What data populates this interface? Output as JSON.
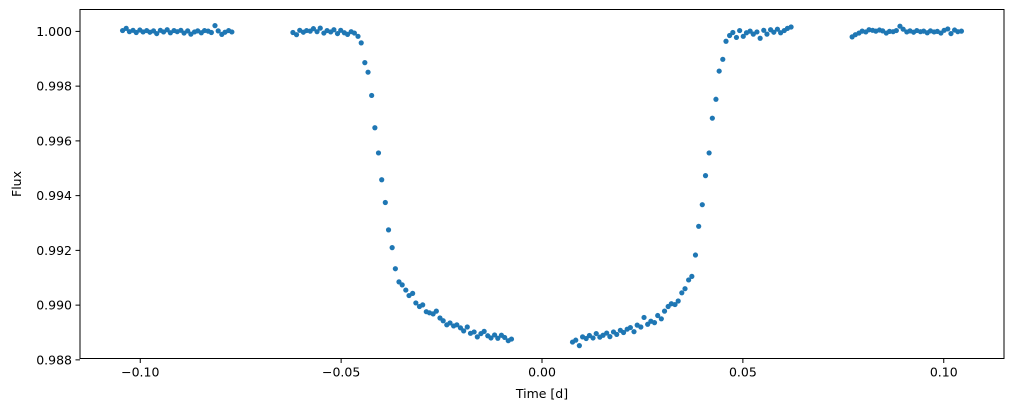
{
  "chart_data": {
    "type": "scatter",
    "title": "",
    "xlabel": "Time [d]",
    "ylabel": "Flux",
    "xlim": [
      -0.115,
      0.115
    ],
    "ylim": [
      0.98805,
      1.0008
    ],
    "grid": false,
    "xticks": [
      -0.1,
      -0.05,
      0.0,
      0.05,
      0.1
    ],
    "xtick_labels": [
      "−0.10",
      "−0.05",
      "0.00",
      "0.05",
      "0.10"
    ],
    "yticks": [
      0.988,
      0.99,
      0.992,
      0.994,
      0.996,
      0.998,
      1.0
    ],
    "ytick_labels": [
      "0.988",
      "0.990",
      "0.992",
      "0.994",
      "0.996",
      "0.998",
      "1.000"
    ],
    "marker_color": "#1f77b4",
    "axes_color": "#000000",
    "points": [
      [
        -0.1044,
        1.00003
      ],
      [
        -0.1035,
        1.00011
      ],
      [
        -0.1027,
        0.99999
      ],
      [
        -0.1018,
        1.00004
      ],
      [
        -0.101,
        0.99996
      ],
      [
        -0.1001,
        1.00005
      ],
      [
        -0.0993,
        0.99998
      ],
      [
        -0.0984,
        1.00003
      ],
      [
        -0.0976,
        0.99997
      ],
      [
        -0.0967,
        1.00002
      ],
      [
        -0.0959,
        0.99992
      ],
      [
        -0.095,
        1.00004
      ],
      [
        -0.0942,
        0.99998
      ],
      [
        -0.0933,
        1.00006
      ],
      [
        -0.0925,
        0.99995
      ],
      [
        -0.0916,
        1.00003
      ],
      [
        -0.0908,
        0.99999
      ],
      [
        -0.0899,
        1.00004
      ],
      [
        -0.0891,
        0.99994
      ],
      [
        -0.0882,
        1.00002
      ],
      [
        -0.0874,
        0.9999
      ],
      [
        -0.0865,
        0.99998
      ],
      [
        -0.0857,
        1.00002
      ],
      [
        -0.0848,
        0.99995
      ],
      [
        -0.084,
        1.00003
      ],
      [
        -0.0831,
        1.00001
      ],
      [
        -0.0823,
        0.99996
      ],
      [
        -0.0814,
        1.00021
      ],
      [
        -0.0806,
        1.00002
      ],
      [
        -0.0797,
        0.99989
      ],
      [
        -0.0789,
        0.99997
      ],
      [
        -0.078,
        1.00003
      ],
      [
        -0.0772,
        0.99998
      ],
      [
        -0.062,
        0.99996
      ],
      [
        -0.0611,
        0.99988
      ],
      [
        -0.0603,
        1.00004
      ],
      [
        -0.0594,
        0.99997
      ],
      [
        -0.0586,
        1.00003
      ],
      [
        -0.0577,
        1.00001
      ],
      [
        -0.0569,
        1.0001
      ],
      [
        -0.056,
        0.99999
      ],
      [
        -0.0552,
        1.00012
      ],
      [
        -0.0543,
        0.99994
      ],
      [
        -0.0535,
        1.00003
      ],
      [
        -0.0526,
        0.99998
      ],
      [
        -0.0518,
        1.00006
      ],
      [
        -0.0509,
        0.99992
      ],
      [
        -0.0501,
        1.00004
      ],
      [
        -0.0492,
        0.99995
      ],
      [
        -0.0484,
        0.99989
      ],
      [
        -0.0475,
        0.99999
      ],
      [
        -0.0467,
        0.99994
      ],
      [
        -0.0458,
        0.99982
      ],
      [
        -0.045,
        0.99958
      ],
      [
        -0.0441,
        0.99886
      ],
      [
        -0.0433,
        0.99851
      ],
      [
        -0.0424,
        0.99766
      ],
      [
        -0.0416,
        0.99648
      ],
      [
        -0.0407,
        0.99556
      ],
      [
        -0.0399,
        0.99458
      ],
      [
        -0.039,
        0.99375
      ],
      [
        -0.0382,
        0.99275
      ],
      [
        -0.0373,
        0.9921
      ],
      [
        -0.0365,
        0.99133
      ],
      [
        -0.0356,
        0.99085
      ],
      [
        -0.0348,
        0.99074
      ],
      [
        -0.0339,
        0.99055
      ],
      [
        -0.0331,
        0.99035
      ],
      [
        -0.0322,
        0.99043
      ],
      [
        -0.0314,
        0.99008
      ],
      [
        -0.0305,
        0.98995
      ],
      [
        -0.0297,
        0.99001
      ],
      [
        -0.0288,
        0.98976
      ],
      [
        -0.028,
        0.98972
      ],
      [
        -0.0271,
        0.98968
      ],
      [
        -0.0263,
        0.98978
      ],
      [
        -0.0254,
        0.98953
      ],
      [
        -0.0246,
        0.98943
      ],
      [
        -0.0237,
        0.98928
      ],
      [
        -0.0229,
        0.98935
      ],
      [
        -0.022,
        0.98924
      ],
      [
        -0.0212,
        0.98928
      ],
      [
        -0.0203,
        0.98917
      ],
      [
        -0.0195,
        0.98906
      ],
      [
        -0.0186,
        0.9892
      ],
      [
        -0.0178,
        0.98897
      ],
      [
        -0.0169,
        0.98902
      ],
      [
        -0.0161,
        0.98884
      ],
      [
        -0.0152,
        0.98896
      ],
      [
        -0.0144,
        0.98904
      ],
      [
        -0.0135,
        0.98888
      ],
      [
        -0.0127,
        0.9888
      ],
      [
        -0.0118,
        0.98891
      ],
      [
        -0.011,
        0.98879
      ],
      [
        -0.0101,
        0.9889
      ],
      [
        -0.0093,
        0.98882
      ],
      [
        -0.0084,
        0.9887
      ],
      [
        -0.0076,
        0.98876
      ],
      [
        0.0076,
        0.98865
      ],
      [
        0.0084,
        0.98872
      ],
      [
        0.0093,
        0.98852
      ],
      [
        0.0101,
        0.98884
      ],
      [
        0.011,
        0.98878
      ],
      [
        0.0118,
        0.98889
      ],
      [
        0.0127,
        0.9888
      ],
      [
        0.0135,
        0.98896
      ],
      [
        0.0144,
        0.98883
      ],
      [
        0.0152,
        0.9889
      ],
      [
        0.0161,
        0.98898
      ],
      [
        0.0169,
        0.98885
      ],
      [
        0.0178,
        0.98902
      ],
      [
        0.0186,
        0.98893
      ],
      [
        0.0195,
        0.98908
      ],
      [
        0.0203,
        0.989
      ],
      [
        0.0212,
        0.98912
      ],
      [
        0.022,
        0.98918
      ],
      [
        0.0229,
        0.98903
      ],
      [
        0.0237,
        0.98927
      ],
      [
        0.0246,
        0.9892
      ],
      [
        0.0254,
        0.98955
      ],
      [
        0.0263,
        0.9893
      ],
      [
        0.0271,
        0.98941
      ],
      [
        0.028,
        0.98936
      ],
      [
        0.0288,
        0.98962
      ],
      [
        0.0297,
        0.9895
      ],
      [
        0.0305,
        0.98978
      ],
      [
        0.0314,
        0.98995
      ],
      [
        0.0322,
        0.99005
      ],
      [
        0.0331,
        0.99002
      ],
      [
        0.0339,
        0.99015
      ],
      [
        0.0348,
        0.99045
      ],
      [
        0.0356,
        0.9906
      ],
      [
        0.0365,
        0.99092
      ],
      [
        0.0373,
        0.99105
      ],
      [
        0.0382,
        0.99183
      ],
      [
        0.039,
        0.99288
      ],
      [
        0.0399,
        0.99367
      ],
      [
        0.0407,
        0.99473
      ],
      [
        0.0416,
        0.99556
      ],
      [
        0.0424,
        0.99683
      ],
      [
        0.0433,
        0.99752
      ],
      [
        0.0441,
        0.99855
      ],
      [
        0.045,
        0.99898
      ],
      [
        0.0458,
        0.99964
      ],
      [
        0.0467,
        0.99985
      ],
      [
        0.0475,
        0.99996
      ],
      [
        0.0484,
        0.99978
      ],
      [
        0.0492,
        1.00003
      ],
      [
        0.0501,
        0.99982
      ],
      [
        0.0509,
        0.99995
      ],
      [
        0.0518,
        1.00001
      ],
      [
        0.0526,
        0.9999
      ],
      [
        0.0535,
        0.99998
      ],
      [
        0.0543,
        0.99975
      ],
      [
        0.0552,
        1.00004
      ],
      [
        0.056,
        0.9999
      ],
      [
        0.0569,
        1.00006
      ],
      [
        0.0577,
        0.99997
      ],
      [
        0.0586,
        1.00008
      ],
      [
        0.0594,
        0.99995
      ],
      [
        0.0603,
        1.00003
      ],
      [
        0.0611,
        1.00011
      ],
      [
        0.062,
        1.00016
      ],
      [
        0.0772,
        0.9998
      ],
      [
        0.078,
        0.99988
      ],
      [
        0.0789,
        0.99994
      ],
      [
        0.0797,
        1.00001
      ],
      [
        0.0806,
        0.99998
      ],
      [
        0.0814,
        1.00006
      ],
      [
        0.0823,
        1.00004
      ],
      [
        0.0831,
        1.00001
      ],
      [
        0.084,
        1.00005
      ],
      [
        0.0848,
        1.00002
      ],
      [
        0.0857,
        0.99994
      ],
      [
        0.0865,
        1.0
      ],
      [
        0.0874,
        0.99999
      ],
      [
        0.0882,
        1.00003
      ],
      [
        0.0891,
        1.00019
      ],
      [
        0.0899,
        1.00008
      ],
      [
        0.0908,
        0.99998
      ],
      [
        0.0916,
        1.00002
      ],
      [
        0.0925,
        0.99997
      ],
      [
        0.0933,
        1.00003
      ],
      [
        0.0942,
        0.99999
      ],
      [
        0.095,
        1.00001
      ],
      [
        0.0959,
        0.99995
      ],
      [
        0.0967,
        1.00002
      ],
      [
        0.0976,
        0.99998
      ],
      [
        0.0984,
        1.0
      ],
      [
        0.0993,
        0.99994
      ],
      [
        0.1001,
        1.00004
      ],
      [
        0.101,
        1.00009
      ],
      [
        0.1018,
        0.99992
      ],
      [
        0.1027,
        1.00005
      ],
      [
        0.1035,
        0.99999
      ],
      [
        0.1044,
        1.00001
      ]
    ]
  }
}
